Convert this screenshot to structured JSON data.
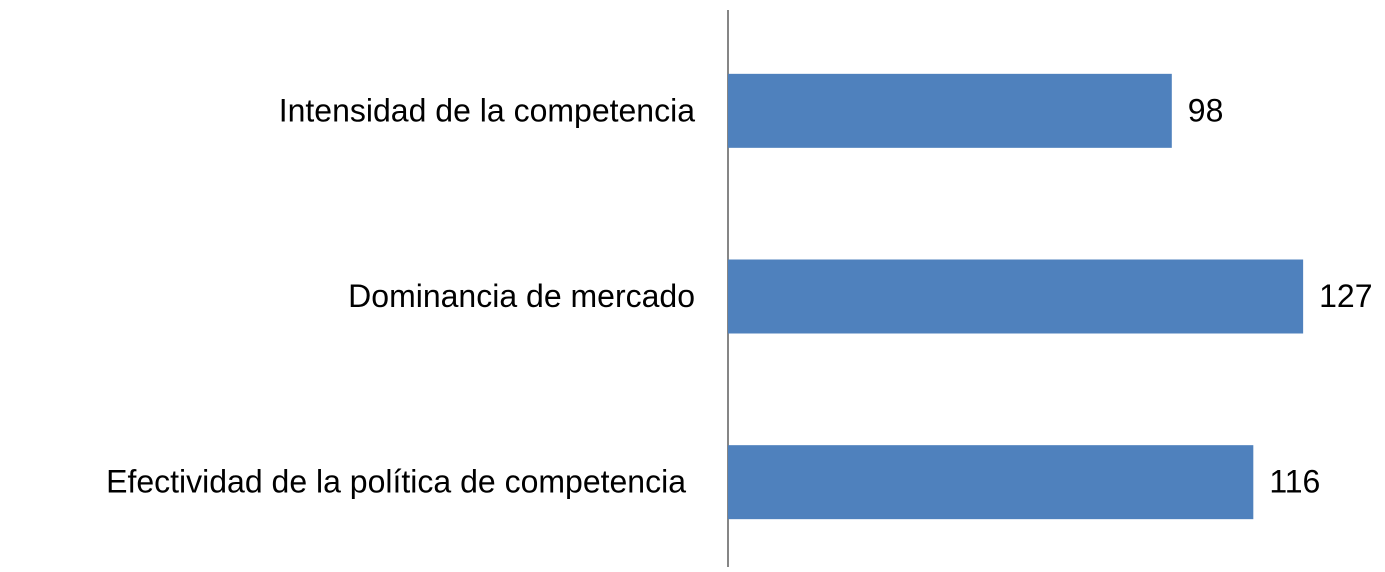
{
  "chart_data": {
    "type": "barh",
    "categories": [
      "Intensidad de la competencia",
      "Dominancia de mercado",
      "Efectividad de la política de competencia"
    ],
    "values": [
      98,
      127,
      116
    ],
    "color": "#4f81bd",
    "xlim": [
      0,
      140
    ]
  }
}
